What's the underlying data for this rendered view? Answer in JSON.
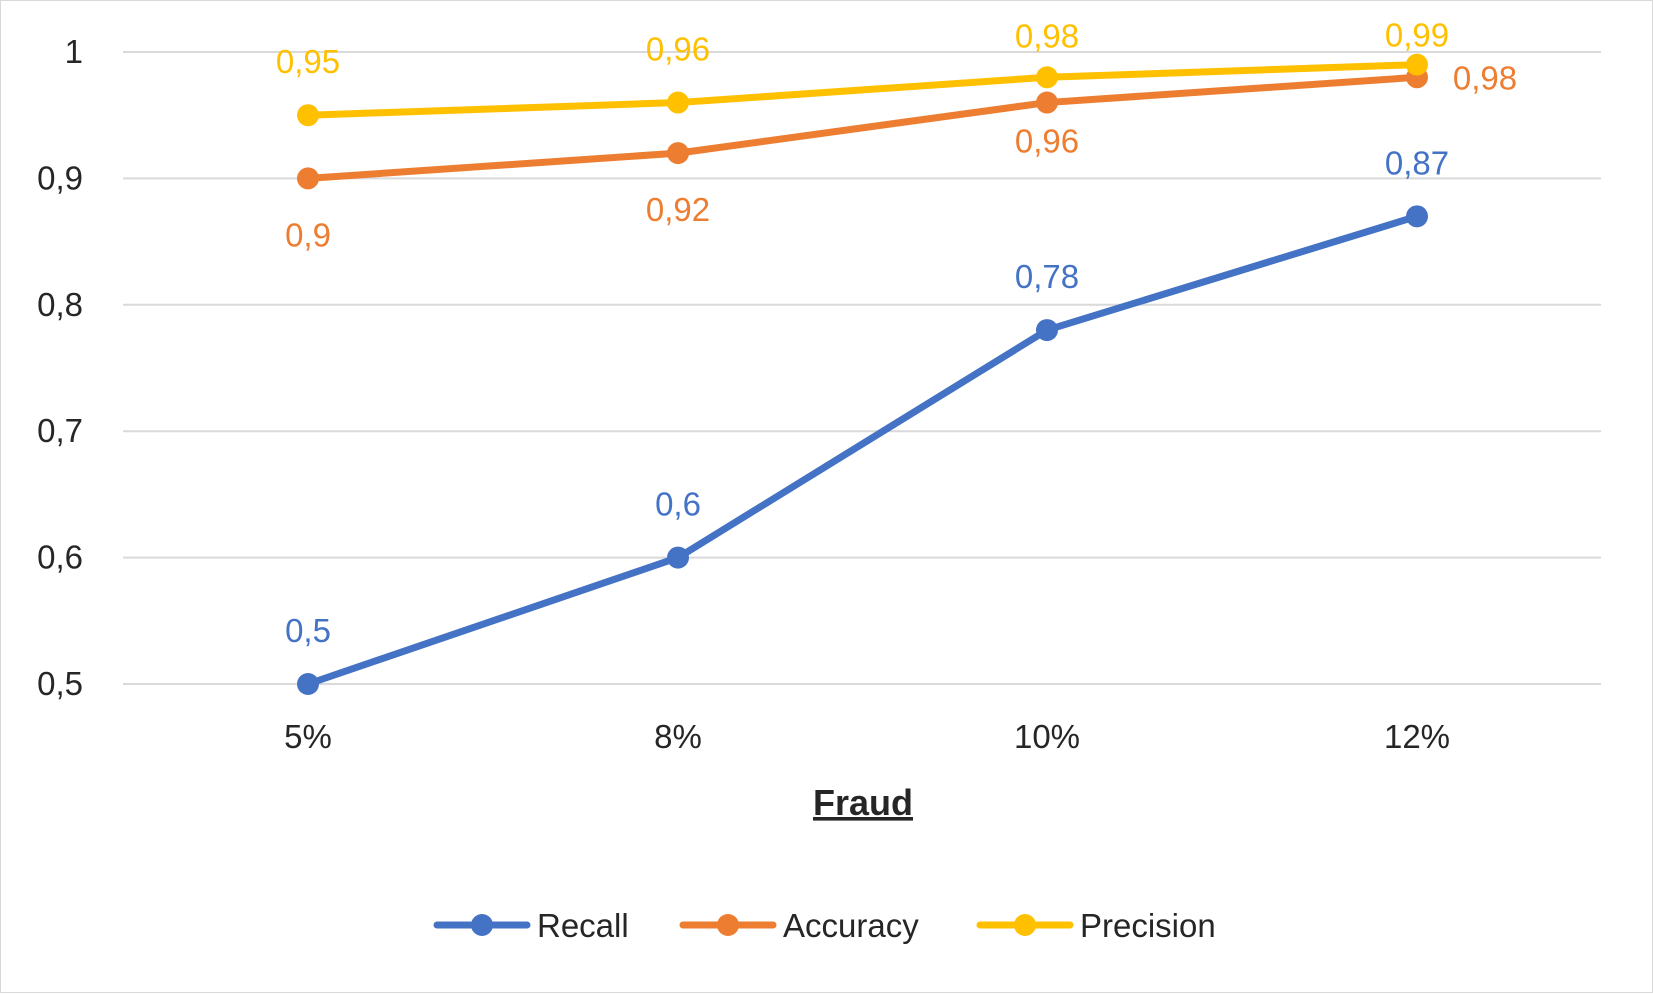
{
  "chart_data": {
    "type": "line",
    "categories": [
      "5%",
      "8%",
      "10%",
      "12%"
    ],
    "xlabel": "Fraud",
    "ylabel": "",
    "ylim": [
      0.5,
      1.0
    ],
    "yticks": [
      0.5,
      0.6,
      0.7,
      0.8,
      0.9,
      1.0
    ],
    "ytick_labels": [
      "0,5",
      "0,6",
      "0,7",
      "0,8",
      "0,9",
      "1"
    ],
    "grid": true,
    "legend": "bottom",
    "series": [
      {
        "name": "Recall",
        "color": "#4472C4",
        "values": [
          0.5,
          0.6,
          0.78,
          0.87
        ],
        "labels": [
          "0,5",
          "0,6",
          "0,78",
          "0,87"
        ]
      },
      {
        "name": "Accuracy",
        "color": "#ED7D31",
        "values": [
          0.9,
          0.92,
          0.96,
          0.98
        ],
        "labels": [
          "0,9",
          "0,92",
          "0,96",
          "0,98"
        ]
      },
      {
        "name": "Precision",
        "color": "#FFC000",
        "values": [
          0.95,
          0.96,
          0.98,
          0.99
        ],
        "labels": [
          "0,95",
          "0,96",
          "0,98",
          "0,99"
        ]
      }
    ]
  }
}
